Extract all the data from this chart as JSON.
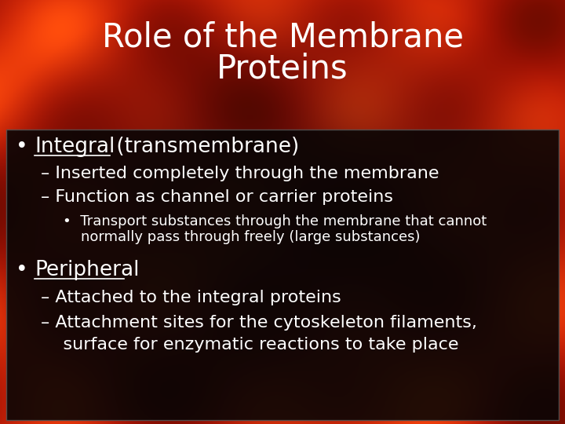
{
  "title_line1": "Role of the Membrane",
  "title_line2": "Proteins",
  "title_color": "#ffffff",
  "title_fontsize": 30,
  "title_font": "Impact",
  "bg_color": "#000000",
  "content_text_color": "#ffffff",
  "bullet1_label": "Integral",
  "bullet1_rest": " (transmembrane)",
  "bullet1_fontsize": 19,
  "sub1a": "– Inserted completely through the membrane",
  "sub1b": "– Function as channel or carrier proteins",
  "sub1c_line1": "•  Transport substances through the membrane that cannot",
  "sub1c_line2": "    normally pass through freely (large substances)",
  "sub_fontsize": 16,
  "subsub_fontsize": 13,
  "bullet2_label": "Peripheral",
  "bullet2_fontsize": 19,
  "sub2a": "– Attached to the integral proteins",
  "sub2b_line1": "– Attachment sites for the cytoskeleton filaments,",
  "sub2b_line2": "    surface for enzymatic reactions to take place",
  "figsize": [
    7.2,
    5.4
  ],
  "dpi": 100
}
